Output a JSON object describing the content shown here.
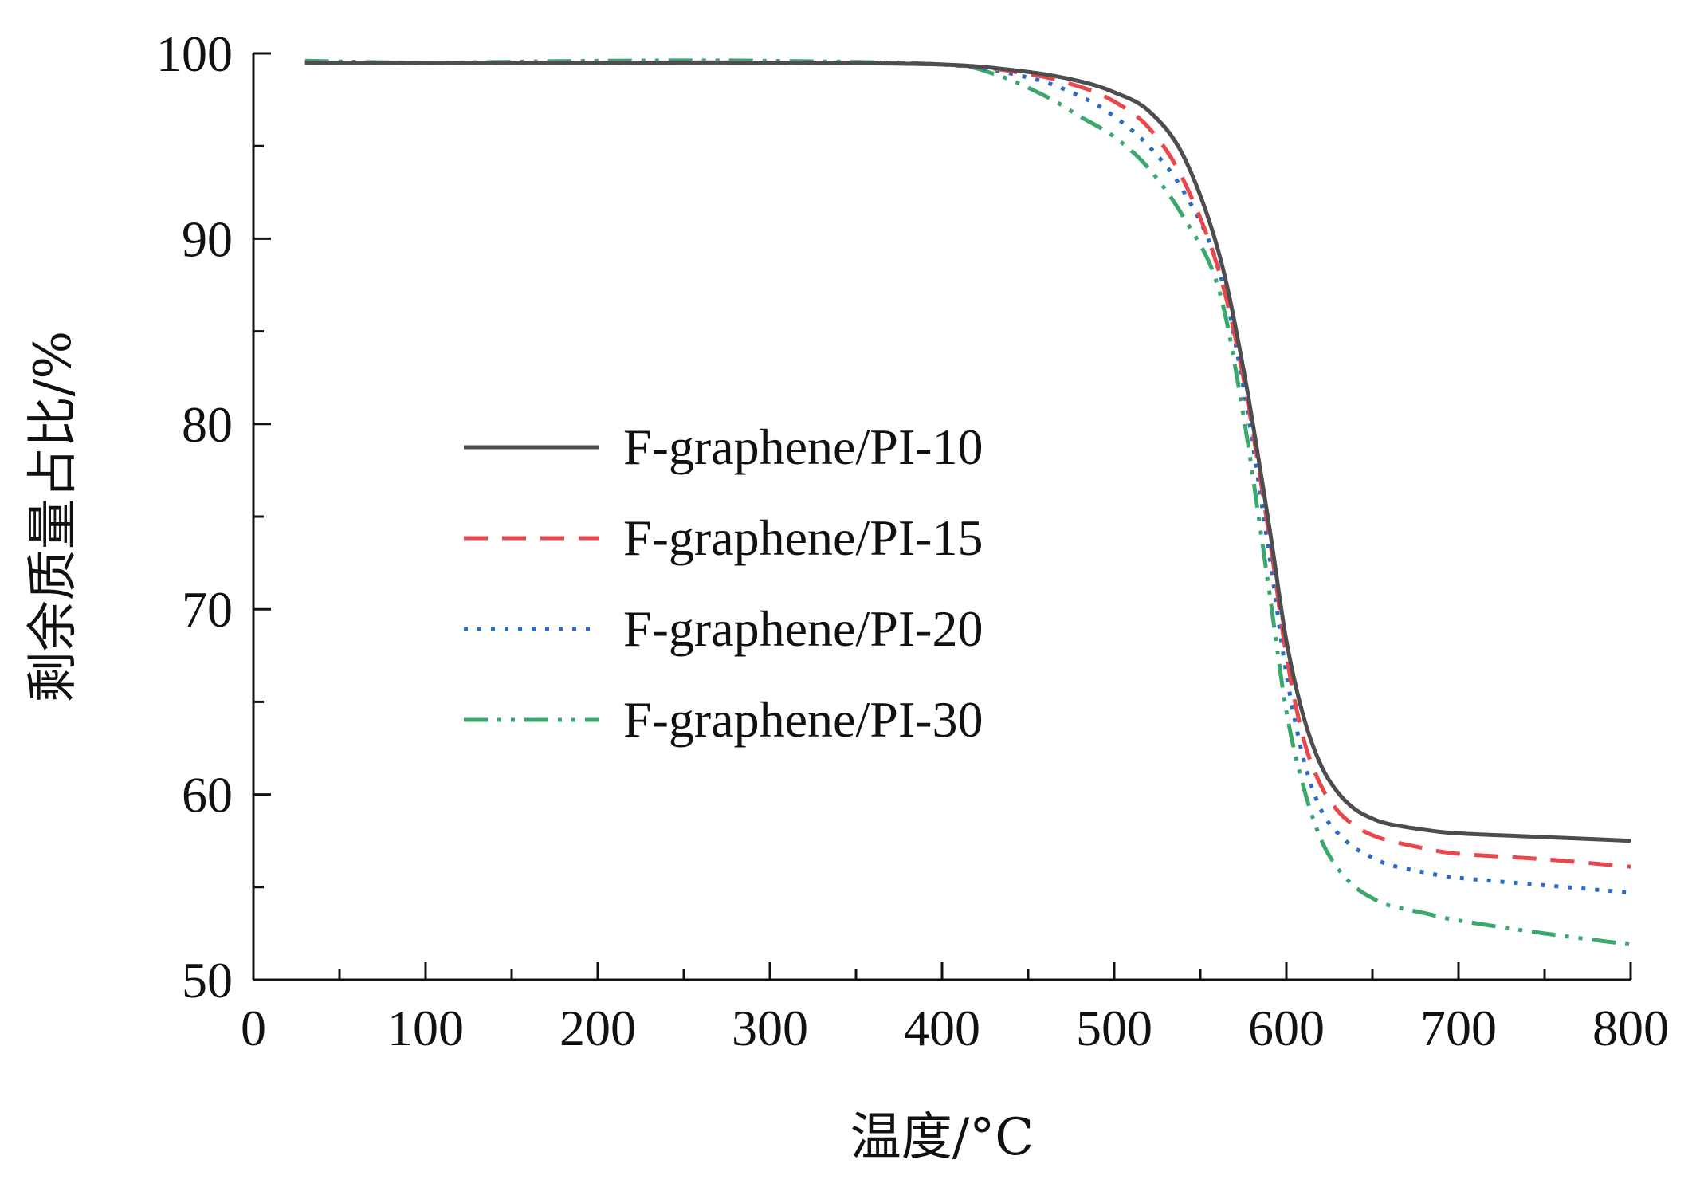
{
  "chart_data": {
    "type": "line",
    "title": "",
    "xlabel": "温度/°C",
    "ylabel": "剩余质量占比/%",
    "xlim": [
      0,
      800
    ],
    "ylim": [
      50,
      100
    ],
    "xticks": [
      0,
      100,
      200,
      300,
      400,
      500,
      600,
      700,
      800
    ],
    "yticks": [
      50,
      60,
      70,
      80,
      90,
      100
    ],
    "xtick_labels": [
      "0",
      "100",
      "200",
      "300",
      "400",
      "500",
      "600",
      "700",
      "800"
    ],
    "ytick_labels": [
      "50",
      "60",
      "70",
      "80",
      "90",
      "100"
    ],
    "grid": false,
    "legend_position": "center-left",
    "series": [
      {
        "name": "F-graphene/PI-10",
        "color": "#4d4d4f",
        "dash": "solid",
        "x": [
          30,
          100,
          200,
          300,
          400,
          450,
          480,
          500,
          520,
          540,
          560,
          575,
          590,
          600,
          610,
          620,
          630,
          640,
          650,
          660,
          680,
          700,
          750,
          800
        ],
        "y": [
          99.5,
          99.5,
          99.5,
          99.5,
          99.4,
          99.0,
          98.5,
          97.9,
          96.9,
          94.5,
          89.5,
          83.0,
          74.5,
          68.3,
          64.2,
          61.6,
          60.1,
          59.2,
          58.7,
          58.4,
          58.1,
          57.9,
          57.7,
          57.5
        ]
      },
      {
        "name": "F-graphene/PI-15",
        "color": "#e8474c",
        "dash": "long-dash",
        "x": [
          30,
          100,
          200,
          300,
          400,
          450,
          480,
          500,
          520,
          540,
          560,
          575,
          590,
          600,
          610,
          620,
          630,
          640,
          650,
          660,
          680,
          700,
          750,
          800
        ],
        "y": [
          99.5,
          99.5,
          99.5,
          99.5,
          99.4,
          98.9,
          98.2,
          97.4,
          96.0,
          93.2,
          88.5,
          82.5,
          74.0,
          67.5,
          63.0,
          60.5,
          59.1,
          58.3,
          57.8,
          57.5,
          57.1,
          56.8,
          56.5,
          56.1
        ]
      },
      {
        "name": "F-graphene/PI-20",
        "color": "#2a6cc4",
        "dash": "dotted",
        "x": [
          30,
          100,
          200,
          300,
          400,
          450,
          480,
          500,
          520,
          540,
          560,
          575,
          590,
          600,
          610,
          620,
          630,
          640,
          650,
          660,
          680,
          700,
          750,
          800
        ],
        "y": [
          99.5,
          99.5,
          99.5,
          99.5,
          99.4,
          98.7,
          97.7,
          96.6,
          95.0,
          92.6,
          88.6,
          82.0,
          73.0,
          66.5,
          61.9,
          59.2,
          57.9,
          57.1,
          56.6,
          56.2,
          55.8,
          55.5,
          55.1,
          54.7
        ]
      },
      {
        "name": "F-graphene/PI-30",
        "color": "#3aa86c",
        "dash": "dash-dot-dot",
        "x": [
          30,
          100,
          200,
          300,
          400,
          430,
          460,
          480,
          500,
          520,
          540,
          560,
          575,
          590,
          600,
          610,
          620,
          630,
          640,
          650,
          660,
          680,
          700,
          750,
          800
        ],
        "y": [
          99.6,
          99.5,
          99.6,
          99.6,
          99.4,
          98.9,
          97.7,
          96.6,
          95.5,
          93.8,
          91.2,
          87.5,
          80.5,
          71.0,
          64.5,
          60.4,
          57.6,
          56.0,
          55.0,
          54.4,
          54.0,
          53.6,
          53.2,
          52.5,
          51.9
        ]
      }
    ]
  }
}
